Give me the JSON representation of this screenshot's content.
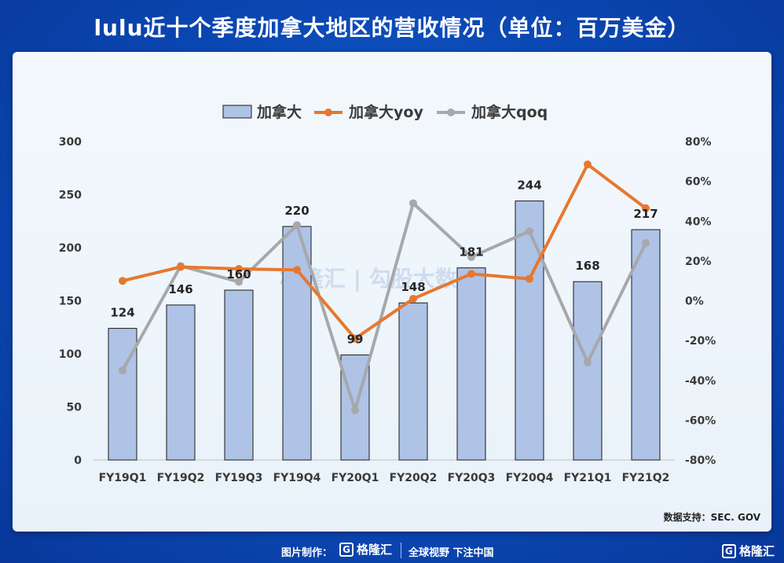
{
  "title": "lulu近十个季度加拿大地区的营收情况（单位：百万美金）",
  "source": "数据支持：SEC. GOV",
  "watermark": "格隆汇 | 勾股大数据",
  "footer": {
    "made_by": "图片制作：",
    "logo_text": "格隆汇",
    "slogan": "全球视野 下注中国",
    "corner_logo": "格隆汇"
  },
  "colors": {
    "bar_fill": "#aec3e6",
    "bar_stroke": "#1a1a1a",
    "yoy": "#e6782e",
    "qoq": "#a6a8ab"
  },
  "chart_data": {
    "type": "bar",
    "categories": [
      "FY19Q1",
      "FY19Q2",
      "FY19Q3",
      "FY19Q4",
      "FY20Q1",
      "FY20Q2",
      "FY20Q3",
      "FY20Q4",
      "FY21Q1",
      "FY21Q2"
    ],
    "series": [
      {
        "name": "加拿大",
        "type": "bar",
        "axis": "left",
        "values": [
          124,
          146,
          160,
          220,
          99,
          148,
          181,
          244,
          168,
          217
        ]
      },
      {
        "name": "加拿大yoy",
        "type": "line",
        "axis": "right",
        "values": [
          10,
          17,
          16,
          15.5,
          -19,
          1,
          13.5,
          11,
          68.5,
          46.5
        ]
      },
      {
        "name": "加拿大qoq",
        "type": "line",
        "axis": "right",
        "values": [
          -35,
          17.5,
          9.5,
          38,
          -55,
          49,
          22,
          35,
          -31,
          29
        ]
      }
    ],
    "ylim_left": [
      0,
      300
    ],
    "yticks_left": [
      "0",
      "50",
      "100",
      "150",
      "200",
      "250",
      "300"
    ],
    "ylim_right": [
      -80,
      80
    ],
    "yticks_right": [
      "-80%",
      "-60%",
      "-40%",
      "-20%",
      "0%",
      "20%",
      "40%",
      "60%",
      "80%"
    ],
    "bar_labels": [
      "124",
      "146",
      "160",
      "220",
      "99",
      "148",
      "181",
      "244",
      "168",
      "217"
    ],
    "legend_position": "top-center",
    "grid": false
  }
}
